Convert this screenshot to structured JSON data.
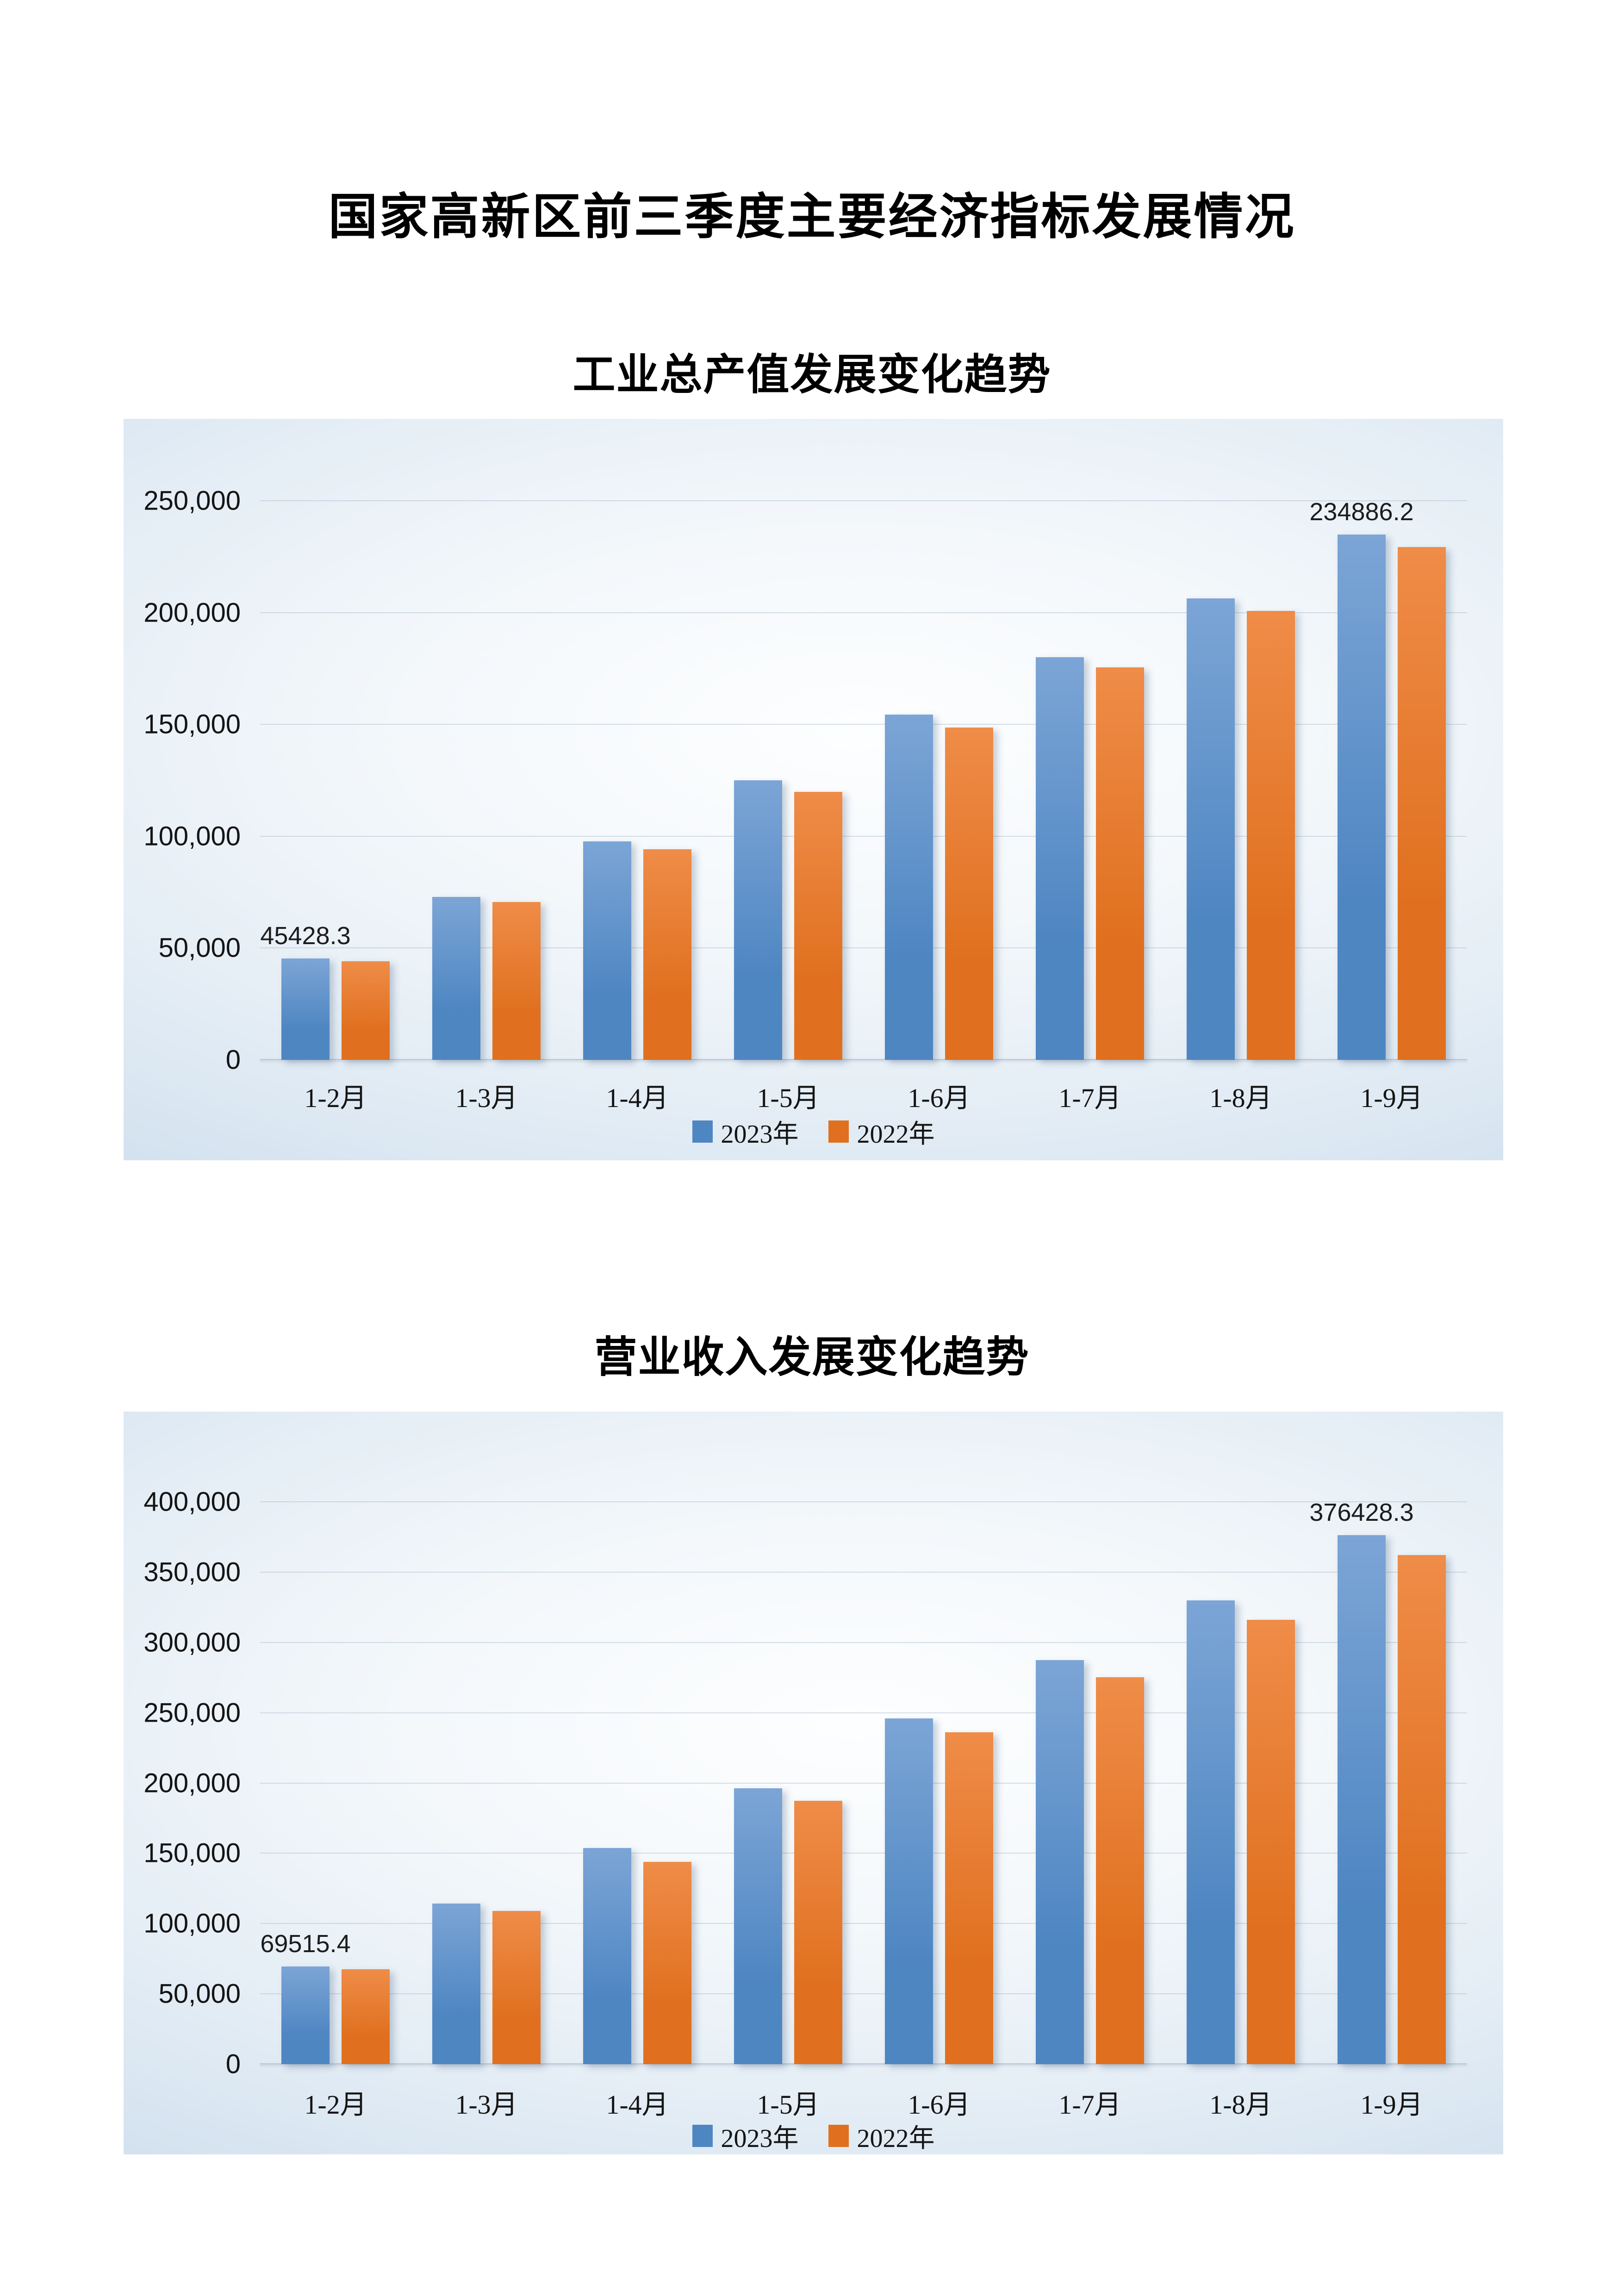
{
  "page": {
    "title": "国家高新区前三季度主要经济指标发展情况"
  },
  "chart_data": [
    {
      "type": "bar",
      "title": "工业总产值发展变化趋势",
      "xlabel": "",
      "ylabel": "",
      "categories": [
        "1-2月",
        "1-3月",
        "1-4月",
        "1-5月",
        "1-6月",
        "1-7月",
        "1-8月",
        "1-9月"
      ],
      "series": [
        {
          "name": "2023年",
          "color": "#4E86C2",
          "color_top": "#7CA5D6",
          "values": [
            45428.3,
            72800,
            97600,
            125000,
            154300,
            180000,
            206300,
            234886.2
          ]
        },
        {
          "name": "2022年",
          "color": "#E0701F",
          "color_top": "#EF8C48",
          "values": [
            44100,
            70600,
            94100,
            119800,
            148600,
            175400,
            200800,
            229300
          ]
        }
      ],
      "ylim": [
        0,
        250000
      ],
      "ytick_step": 50000,
      "yticks": [
        {
          "value": 0,
          "label": "0"
        },
        {
          "value": 50000,
          "label": "50,000"
        },
        {
          "value": 100000,
          "label": "100,000"
        },
        {
          "value": 150000,
          "label": "150,000"
        },
        {
          "value": 200000,
          "label": "200,000"
        },
        {
          "value": 250000,
          "label": "250,000"
        }
      ],
      "grid": true,
      "legend_position": "bottom",
      "data_labels": [
        {
          "series": 0,
          "index": 0,
          "text": "45428.3"
        },
        {
          "series": 0,
          "index": 7,
          "text": "234886.2"
        }
      ]
    },
    {
      "type": "bar",
      "title": "营业收入发展变化趋势",
      "xlabel": "",
      "ylabel": "",
      "categories": [
        "1-2月",
        "1-3月",
        "1-4月",
        "1-5月",
        "1-6月",
        "1-7月",
        "1-8月",
        "1-9月"
      ],
      "series": [
        {
          "name": "2023年",
          "color": "#4E86C2",
          "color_top": "#7CA5D6",
          "values": [
            69515.4,
            114200,
            153700,
            196300,
            245800,
            287400,
            329800,
            376428.3
          ]
        },
        {
          "name": "2022年",
          "color": "#E0701F",
          "color_top": "#EF8C48",
          "values": [
            67400,
            109100,
            143900,
            187200,
            236200,
            275300,
            316200,
            362100
          ]
        }
      ],
      "ylim": [
        0,
        400000
      ],
      "ytick_step": 50000,
      "yticks": [
        {
          "value": 0,
          "label": "0"
        },
        {
          "value": 50000,
          "label": "50,000"
        },
        {
          "value": 100000,
          "label": "100,000"
        },
        {
          "value": 150000,
          "label": "150,000"
        },
        {
          "value": 200000,
          "label": "200,000"
        },
        {
          "value": 250000,
          "label": "250,000"
        },
        {
          "value": 300000,
          "label": "300,000"
        },
        {
          "value": 350000,
          "label": "350,000"
        },
        {
          "value": 400000,
          "label": "400,000"
        }
      ],
      "grid": true,
      "legend_position": "bottom",
      "data_labels": [
        {
          "series": 0,
          "index": 0,
          "text": "69515.4"
        },
        {
          "series": 0,
          "index": 7,
          "text": "376428.3"
        }
      ]
    }
  ]
}
